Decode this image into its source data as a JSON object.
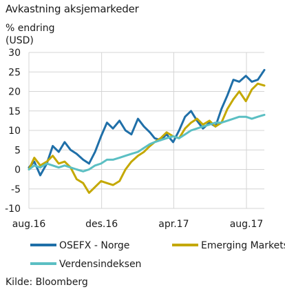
{
  "chart_data": {
    "type": "line",
    "title": "Avkastning aksjemarkeder",
    "ylabel_line1": "% endring",
    "ylabel_line2": "(USD)",
    "source": "Kilde: Bloomberg",
    "ylim": [
      -10,
      30
    ],
    "yticks": [
      30,
      25,
      20,
      15,
      10,
      5,
      0,
      -5,
      -10
    ],
    "xlim": [
      "2016-08-01",
      "2017-08-31"
    ],
    "xticks": [
      {
        "date": "2016-08-01",
        "label": "aug.16"
      },
      {
        "date": "2016-12-01",
        "label": "des.16"
      },
      {
        "date": "2017-04-01",
        "label": "apr.17"
      },
      {
        "date": "2017-08-01",
        "label": "aug.17"
      }
    ],
    "grid": true,
    "legend_position": "bottom",
    "series": [
      {
        "name": "OSEFX - Norge",
        "color": "#1f6fa8",
        "points": [
          [
            "2016-08-01",
            0.5
          ],
          [
            "2016-08-10",
            2.0
          ],
          [
            "2016-08-20",
            -1.5
          ],
          [
            "2016-08-31",
            1.5
          ],
          [
            "2016-09-10",
            6.0
          ],
          [
            "2016-09-20",
            4.5
          ],
          [
            "2016-09-30",
            7.0
          ],
          [
            "2016-10-10",
            5.0
          ],
          [
            "2016-10-20",
            4.0
          ],
          [
            "2016-10-31",
            2.5
          ],
          [
            "2016-11-10",
            1.5
          ],
          [
            "2016-11-20",
            4.5
          ],
          [
            "2016-11-30",
            8.5
          ],
          [
            "2016-12-10",
            12.0
          ],
          [
            "2016-12-20",
            10.5
          ],
          [
            "2016-12-31",
            12.5
          ],
          [
            "2017-01-10",
            10.0
          ],
          [
            "2017-01-20",
            9.0
          ],
          [
            "2017-01-31",
            13.0
          ],
          [
            "2017-02-10",
            11.0
          ],
          [
            "2017-02-20",
            9.5
          ],
          [
            "2017-02-28",
            8.0
          ],
          [
            "2017-03-10",
            7.5
          ],
          [
            "2017-03-20",
            9.0
          ],
          [
            "2017-03-31",
            7.0
          ],
          [
            "2017-04-10",
            10.0
          ],
          [
            "2017-04-20",
            13.5
          ],
          [
            "2017-04-30",
            15.0
          ],
          [
            "2017-05-10",
            12.5
          ],
          [
            "2017-05-20",
            10.5
          ],
          [
            "2017-05-31",
            12.0
          ],
          [
            "2017-06-10",
            11.0
          ],
          [
            "2017-06-20",
            15.5
          ],
          [
            "2017-06-30",
            19.0
          ],
          [
            "2017-07-10",
            23.0
          ],
          [
            "2017-07-20",
            22.5
          ],
          [
            "2017-07-31",
            24.0
          ],
          [
            "2017-08-10",
            22.5
          ],
          [
            "2017-08-20",
            23.0
          ],
          [
            "2017-08-31",
            25.5
          ]
        ]
      },
      {
        "name": "Emerging Markets",
        "color": "#c4a800",
        "points": [
          [
            "2016-08-01",
            0.0
          ],
          [
            "2016-08-10",
            3.0
          ],
          [
            "2016-08-20",
            1.0
          ],
          [
            "2016-08-31",
            2.0
          ],
          [
            "2016-09-10",
            3.5
          ],
          [
            "2016-09-20",
            1.5
          ],
          [
            "2016-09-30",
            2.0
          ],
          [
            "2016-10-10",
            0.5
          ],
          [
            "2016-10-20",
            -2.5
          ],
          [
            "2016-10-31",
            -3.5
          ],
          [
            "2016-11-10",
            -6.0
          ],
          [
            "2016-11-20",
            -4.5
          ],
          [
            "2016-11-30",
            -3.0
          ],
          [
            "2016-12-10",
            -3.5
          ],
          [
            "2016-12-20",
            -4.0
          ],
          [
            "2016-12-31",
            -3.0
          ],
          [
            "2017-01-10",
            0.0
          ],
          [
            "2017-01-20",
            2.0
          ],
          [
            "2017-01-31",
            3.5
          ],
          [
            "2017-02-10",
            4.5
          ],
          [
            "2017-02-20",
            6.0
          ],
          [
            "2017-02-28",
            7.0
          ],
          [
            "2017-03-10",
            8.0
          ],
          [
            "2017-03-20",
            9.5
          ],
          [
            "2017-03-31",
            8.5
          ],
          [
            "2017-04-10",
            8.0
          ],
          [
            "2017-04-20",
            10.5
          ],
          [
            "2017-04-30",
            12.0
          ],
          [
            "2017-05-10",
            13.0
          ],
          [
            "2017-05-20",
            11.5
          ],
          [
            "2017-05-31",
            12.5
          ],
          [
            "2017-06-10",
            11.0
          ],
          [
            "2017-06-20",
            12.0
          ],
          [
            "2017-06-30",
            15.5
          ],
          [
            "2017-07-10",
            18.0
          ],
          [
            "2017-07-20",
            20.0
          ],
          [
            "2017-07-31",
            17.5
          ],
          [
            "2017-08-10",
            20.5
          ],
          [
            "2017-08-20",
            22.0
          ],
          [
            "2017-08-31",
            21.5
          ]
        ]
      },
      {
        "name": "Verdensindeksen",
        "color": "#5bbfc3",
        "points": [
          [
            "2016-08-01",
            0.0
          ],
          [
            "2016-08-10",
            1.0
          ],
          [
            "2016-08-20",
            0.5
          ],
          [
            "2016-08-31",
            1.5
          ],
          [
            "2016-09-10",
            1.0
          ],
          [
            "2016-09-20",
            0.5
          ],
          [
            "2016-09-30",
            1.0
          ],
          [
            "2016-10-10",
            0.5
          ],
          [
            "2016-10-20",
            0.0
          ],
          [
            "2016-10-31",
            -0.5
          ],
          [
            "2016-11-10",
            0.0
          ],
          [
            "2016-11-20",
            1.0
          ],
          [
            "2016-11-30",
            1.5
          ],
          [
            "2016-12-10",
            2.5
          ],
          [
            "2016-12-20",
            2.5
          ],
          [
            "2016-12-31",
            3.0
          ],
          [
            "2017-01-10",
            3.5
          ],
          [
            "2017-01-20",
            4.0
          ],
          [
            "2017-01-31",
            4.5
          ],
          [
            "2017-02-10",
            5.5
          ],
          [
            "2017-02-20",
            6.5
          ],
          [
            "2017-02-28",
            7.0
          ],
          [
            "2017-03-10",
            7.5
          ],
          [
            "2017-03-20",
            8.0
          ],
          [
            "2017-03-31",
            8.5
          ],
          [
            "2017-04-10",
            8.0
          ],
          [
            "2017-04-20",
            9.0
          ],
          [
            "2017-04-30",
            10.0
          ],
          [
            "2017-05-10",
            10.5
          ],
          [
            "2017-05-20",
            11.0
          ],
          [
            "2017-05-31",
            11.5
          ],
          [
            "2017-06-10",
            12.0
          ],
          [
            "2017-06-20",
            12.0
          ],
          [
            "2017-06-30",
            12.5
          ],
          [
            "2017-07-10",
            13.0
          ],
          [
            "2017-07-20",
            13.5
          ],
          [
            "2017-07-31",
            13.5
          ],
          [
            "2017-08-10",
            13.0
          ],
          [
            "2017-08-20",
            13.5
          ],
          [
            "2017-08-31",
            14.0
          ]
        ]
      }
    ]
  }
}
